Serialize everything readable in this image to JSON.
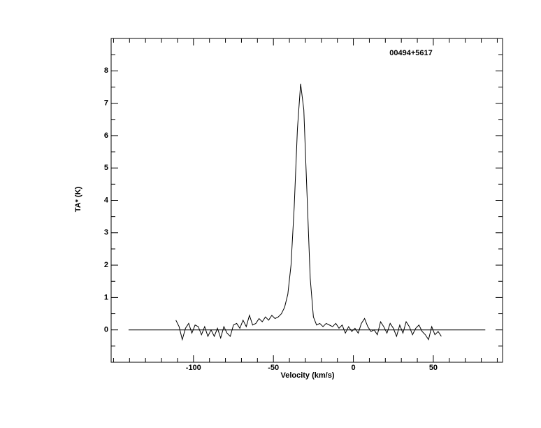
{
  "chart_data": {
    "type": "line",
    "title": "00494+5617",
    "x_label": "Velocity (km/s)",
    "y_label": "TA* (K)",
    "xlim": [
      -151.5,
      93.3
    ],
    "ylim": [
      -1,
      9
    ],
    "xticks": [
      -100,
      -50,
      0,
      50
    ],
    "yticks": [
      0,
      1,
      2,
      3,
      4,
      5,
      6,
      7,
      8
    ],
    "xminorticks": [
      -150,
      -140,
      -130,
      -120,
      -110,
      -90,
      -80,
      -70,
      -60,
      -40,
      -30,
      -20,
      -10,
      10,
      20,
      30,
      40,
      60,
      70,
      80,
      90
    ],
    "yminorticks": [
      -0.5,
      0.5,
      1.5,
      2.5,
      3.5,
      4.5,
      5.5,
      6.5,
      7.5,
      8.5
    ],
    "color": "#000000",
    "x": [
      -111,
      -109,
      -107,
      -105,
      -103,
      -101,
      -99,
      -97,
      -95,
      -93,
      -91,
      -89,
      -87,
      -85,
      -83,
      -81,
      -79,
      -77,
      -75,
      -73,
      -71,
      -69,
      -67,
      -65,
      -63,
      -61,
      -59,
      -57,
      -55,
      -53,
      -51,
      -49,
      -47,
      -45,
      -43,
      -41,
      -39,
      -37,
      -35,
      -33,
      -31,
      -29,
      -27,
      -25,
      -23,
      -21,
      -19,
      -17,
      -15,
      -13,
      -11,
      -9,
      -7,
      -5,
      -3,
      -1,
      1,
      3,
      5,
      7,
      9,
      11,
      13,
      15,
      17,
      19,
      21,
      23,
      25,
      27,
      29,
      31,
      33,
      35,
      37,
      39,
      41,
      43,
      45,
      47,
      49,
      51,
      53,
      55
    ],
    "values": [
      0.3,
      0.1,
      -0.3,
      0.05,
      0.2,
      -0.1,
      0.15,
      0.1,
      -0.15,
      0.1,
      -0.2,
      0.0,
      -0.2,
      0.05,
      -0.25,
      0.1,
      -0.1,
      -0.2,
      0.15,
      0.2,
      0.05,
      0.3,
      0.1,
      0.45,
      0.15,
      0.2,
      0.35,
      0.25,
      0.4,
      0.3,
      0.45,
      0.35,
      0.4,
      0.5,
      0.7,
      1.1,
      2.0,
      3.8,
      6.2,
      7.6,
      6.8,
      4.2,
      1.6,
      0.4,
      0.15,
      0.2,
      0.1,
      0.2,
      0.15,
      0.1,
      0.2,
      0.05,
      0.15,
      -0.1,
      0.1,
      -0.05,
      0.05,
      -0.1,
      0.2,
      0.35,
      0.1,
      -0.05,
      0.0,
      -0.15,
      0.25,
      0.1,
      -0.1,
      0.2,
      0.05,
      -0.2,
      0.15,
      -0.1,
      0.25,
      0.1,
      -0.15,
      0.05,
      0.15,
      -0.05,
      -0.15,
      -0.3,
      0.1,
      -0.15,
      -0.05,
      -0.2
    ],
    "baseline_x": [
      -140.6,
      82.5
    ],
    "baseline_y": 0
  }
}
